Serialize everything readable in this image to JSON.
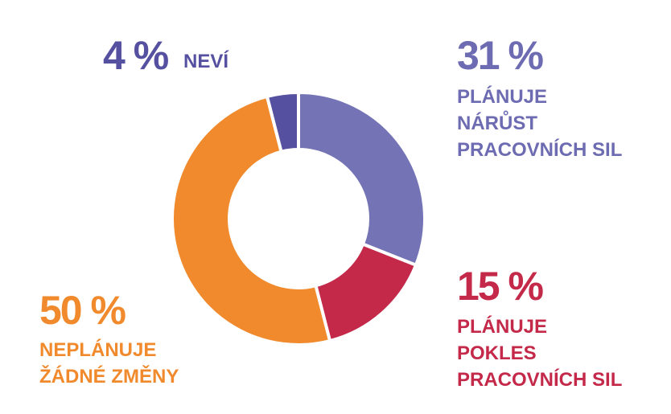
{
  "chart_data": {
    "type": "pie",
    "variant": "donut",
    "segments": [
      {
        "value": 31,
        "display": "31 %",
        "label_lines": [
          "PLÁNUJE",
          "NÁRŮST",
          "PRACOVNÍCH SIL"
        ],
        "color": "#7473b6"
      },
      {
        "value": 15,
        "display": "15 %",
        "label_lines": [
          "PLÁNUJE",
          "POKLES",
          "PRACOVNÍCH SIL"
        ],
        "color": "#c4294a"
      },
      {
        "value": 50,
        "display": "50 %",
        "label_lines": [
          "NEPLÁNUJE",
          "ŽÁDNÉ ZMĚNY"
        ],
        "color": "#f08a2c"
      },
      {
        "value": 4,
        "display": "4 %",
        "label_lines": [
          "NEVÍ"
        ],
        "color": "#5650a0"
      }
    ],
    "start": "12 o'clock",
    "direction": "clockwise"
  }
}
